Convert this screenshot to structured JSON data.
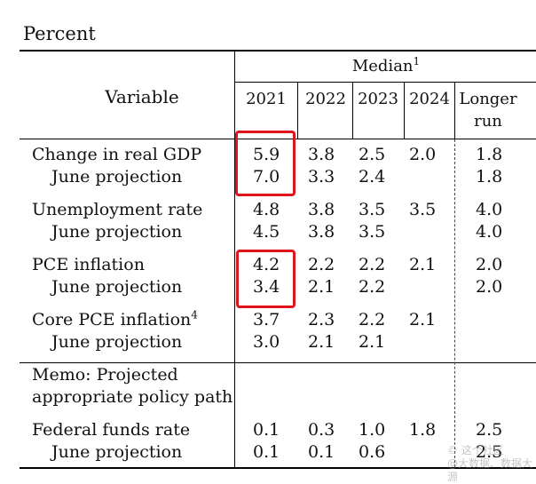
{
  "unit_label": "Percent",
  "header": {
    "variable": "Variable",
    "median": "Median",
    "median_note": "1",
    "years": [
      "2021",
      "2022",
      "2023",
      "2024"
    ],
    "longer_run": [
      "Longer",
      "run"
    ]
  },
  "rows": [
    {
      "label": "Change in real GDP",
      "values": [
        "5.9",
        "3.8",
        "2.5",
        "2.0",
        "1.8"
      ]
    },
    {
      "label": "June projection",
      "values": [
        "7.0",
        "3.3",
        "2.4",
        "",
        "1.8"
      ]
    },
    {
      "label": "Unemployment rate",
      "values": [
        "4.8",
        "3.8",
        "3.5",
        "3.5",
        "4.0"
      ]
    },
    {
      "label": "June projection",
      "values": [
        "4.5",
        "3.8",
        "3.5",
        "",
        "4.0"
      ]
    },
    {
      "label": "PCE inflation",
      "values": [
        "4.2",
        "2.2",
        "2.2",
        "2.1",
        "2.0"
      ]
    },
    {
      "label": "June projection",
      "values": [
        "3.4",
        "2.1",
        "2.2",
        "",
        "2.0"
      ]
    },
    {
      "label": "Core PCE inflation",
      "note": "4",
      "values": [
        "3.7",
        "2.3",
        "2.2",
        "2.1",
        ""
      ]
    },
    {
      "label": "June projection",
      "values": [
        "3.0",
        "2.1",
        "2.1",
        "",
        ""
      ]
    }
  ],
  "memo": [
    "Memo: Projected",
    "appropriate policy path"
  ],
  "funds_rows": [
    {
      "label": "Federal funds rate",
      "values": [
        "0.1",
        "0.3",
        "1.0",
        "1.8",
        "2.5"
      ]
    },
    {
      "label": "June projection",
      "values": [
        "0.1",
        "0.1",
        "0.6",
        "",
        "2.5"
      ]
    }
  ],
  "highlight_color": "#e0151b",
  "watermark": [
    "© 这个社区",
    "@大数据、数据大源"
  ]
}
